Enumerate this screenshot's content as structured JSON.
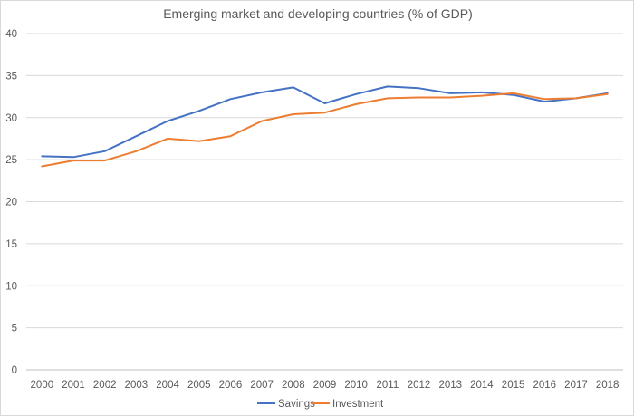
{
  "chart_data": {
    "type": "line",
    "title": "Emerging market and developing countries (% of GDP)",
    "xlabel": "",
    "ylabel": "",
    "x": [
      "2000",
      "2001",
      "2002",
      "2003",
      "2004",
      "2005",
      "2006",
      "2007",
      "2008",
      "2009",
      "2010",
      "2011",
      "2012",
      "2013",
      "2014",
      "2015",
      "2016",
      "2017",
      "2018"
    ],
    "ylim": [
      0,
      40
    ],
    "yticks": [
      0,
      5,
      10,
      15,
      20,
      25,
      30,
      35,
      40
    ],
    "grid": true,
    "legend": "bottom",
    "series": [
      {
        "name": "Savings",
        "color": "#4472c4",
        "values": [
          25.4,
          25.3,
          26.0,
          27.8,
          29.6,
          30.8,
          32.2,
          33.0,
          33.6,
          31.7,
          32.8,
          33.7,
          33.5,
          32.9,
          33.0,
          32.7,
          31.9,
          32.3,
          32.9
        ]
      },
      {
        "name": "Investment",
        "color": "#ed7d31",
        "values": [
          24.2,
          24.9,
          24.9,
          26.0,
          27.5,
          27.2,
          27.8,
          29.6,
          30.4,
          30.6,
          31.6,
          32.3,
          32.4,
          32.4,
          32.6,
          32.9,
          32.2,
          32.3,
          32.8
        ]
      }
    ]
  }
}
